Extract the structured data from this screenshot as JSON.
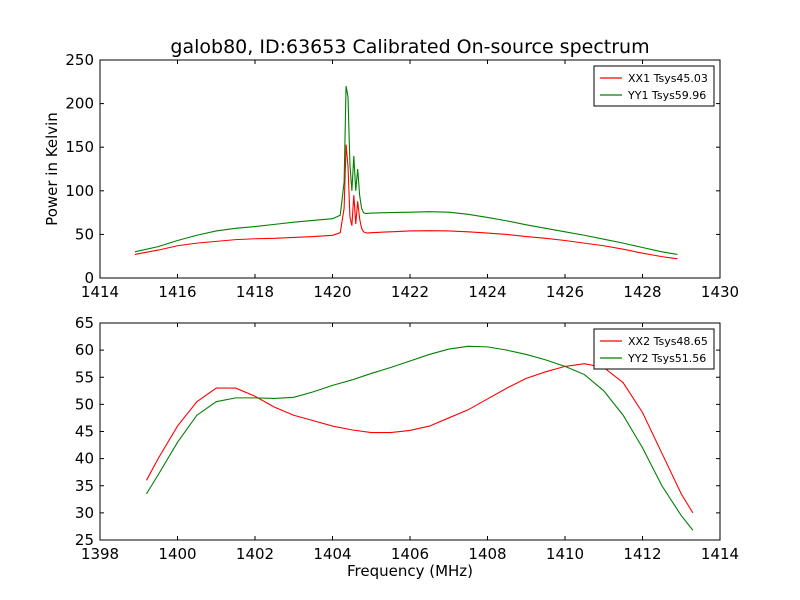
{
  "title": "galob80, ID:63653 Calibrated On-source spectrum",
  "chart_data": [
    {
      "type": "line",
      "title": "galob80, ID:63653 Calibrated On-source spectrum",
      "xlabel": "",
      "ylabel": "Power in Kelvin",
      "xlim": [
        1414,
        1430
      ],
      "ylim": [
        0,
        250
      ],
      "xticks": [
        1414,
        1416,
        1418,
        1420,
        1422,
        1424,
        1426,
        1428,
        1430
      ],
      "yticks": [
        0,
        50,
        100,
        150,
        200,
        250
      ],
      "grid": false,
      "legend_position": "top-right",
      "series": [
        {
          "name": "XX1 Tsys45.03",
          "color": "#ff0000",
          "x": [
            1414.9,
            1415.5,
            1416.0,
            1416.5,
            1417.0,
            1417.5,
            1418.0,
            1418.5,
            1419.0,
            1419.5,
            1420.0,
            1420.2,
            1420.3,
            1420.35,
            1420.4,
            1420.45,
            1420.5,
            1420.55,
            1420.6,
            1420.65,
            1420.7,
            1420.75,
            1420.8,
            1420.85,
            1420.9,
            1421.0,
            1421.5,
            1422.0,
            1422.5,
            1423.0,
            1423.5,
            1424.0,
            1424.5,
            1425.0,
            1425.5,
            1426.0,
            1426.5,
            1427.0,
            1427.5,
            1428.0,
            1428.5,
            1428.9
          ],
          "y": [
            27,
            32,
            37,
            40,
            42,
            44,
            45,
            45.5,
            46.5,
            47.5,
            49,
            52,
            80,
            153,
            128,
            70,
            60,
            95,
            62,
            88,
            68,
            57,
            53,
            52,
            51.5,
            52,
            53,
            54,
            54.3,
            54,
            53,
            51.5,
            50,
            47.5,
            45.5,
            43,
            40,
            37,
            33,
            28.5,
            24.5,
            22
          ]
        },
        {
          "name": "YY1 Tsys59.96",
          "color": "#008000",
          "x": [
            1414.9,
            1415.5,
            1416.0,
            1416.5,
            1417.0,
            1417.5,
            1418.0,
            1418.5,
            1419.0,
            1419.5,
            1420.0,
            1420.2,
            1420.3,
            1420.35,
            1420.4,
            1420.45,
            1420.5,
            1420.55,
            1420.6,
            1420.65,
            1420.7,
            1420.75,
            1420.8,
            1420.85,
            1420.9,
            1421.0,
            1421.5,
            1422.0,
            1422.5,
            1423.0,
            1423.5,
            1424.0,
            1424.5,
            1425.0,
            1425.5,
            1426.0,
            1426.5,
            1427.0,
            1427.5,
            1428.0,
            1428.5,
            1428.9
          ],
          "y": [
            30,
            36,
            43,
            49,
            54,
            57,
            59,
            61.5,
            64,
            66,
            68,
            72,
            110,
            220,
            208,
            130,
            100,
            140,
            100,
            125,
            95,
            80,
            75,
            74,
            74,
            74.5,
            75,
            75.5,
            76,
            75.5,
            73,
            69.5,
            65.5,
            61,
            57,
            53,
            49,
            44.5,
            40,
            35,
            30,
            27
          ]
        }
      ]
    },
    {
      "type": "line",
      "title": "",
      "xlabel": "Frequency (MHz)",
      "ylabel": "",
      "xlim": [
        1398,
        1414
      ],
      "ylim": [
        25,
        65
      ],
      "xticks": [
        1398,
        1400,
        1402,
        1404,
        1406,
        1408,
        1410,
        1412,
        1414
      ],
      "yticks": [
        25,
        30,
        35,
        40,
        45,
        50,
        55,
        60,
        65
      ],
      "grid": false,
      "legend_position": "top-right",
      "series": [
        {
          "name": "XX2 Tsys48.65",
          "color": "#ff0000",
          "x": [
            1399.2,
            1399.5,
            1400.0,
            1400.5,
            1401.0,
            1401.5,
            1402.0,
            1402.5,
            1403.0,
            1403.5,
            1404.0,
            1404.5,
            1405.0,
            1405.5,
            1406.0,
            1406.5,
            1407.0,
            1407.5,
            1408.0,
            1408.5,
            1409.0,
            1409.5,
            1410.0,
            1410.5,
            1411.0,
            1411.5,
            1412.0,
            1412.5,
            1413.0,
            1413.3
          ],
          "y": [
            36,
            40,
            46,
            50.5,
            53,
            53,
            51.5,
            49.5,
            48,
            47,
            46,
            45.3,
            44.8,
            44.8,
            45.2,
            46,
            47.5,
            49,
            51,
            53,
            54.8,
            56,
            57,
            57.5,
            56.8,
            54,
            48.5,
            41,
            33.5,
            30
          ]
        },
        {
          "name": "YY2 Tsys51.56",
          "color": "#008000",
          "x": [
            1399.2,
            1399.5,
            1400.0,
            1400.5,
            1401.0,
            1401.5,
            1402.0,
            1402.5,
            1403.0,
            1403.5,
            1404.0,
            1404.5,
            1405.0,
            1405.5,
            1406.0,
            1406.5,
            1407.0,
            1407.5,
            1408.0,
            1408.5,
            1409.0,
            1409.5,
            1410.0,
            1410.5,
            1411.0,
            1411.5,
            1412.0,
            1412.5,
            1413.0,
            1413.3
          ],
          "y": [
            33.5,
            37,
            43,
            48,
            50.5,
            51.2,
            51.2,
            51.1,
            51.3,
            52.3,
            53.5,
            54.5,
            55.7,
            56.8,
            58,
            59.2,
            60.2,
            60.7,
            60.6,
            60,
            59.2,
            58.2,
            57,
            55.5,
            52.5,
            48,
            42,
            35,
            29.5,
            26.8
          ]
        }
      ]
    }
  ]
}
